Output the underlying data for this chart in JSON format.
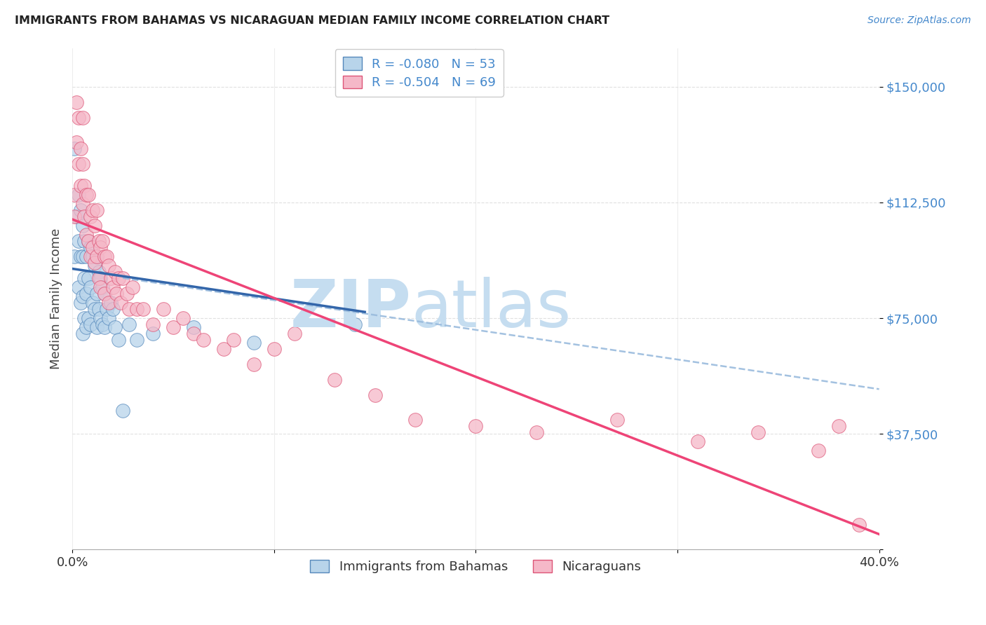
{
  "title": "IMMIGRANTS FROM BAHAMAS VS NICARAGUAN MEDIAN FAMILY INCOME CORRELATION CHART",
  "source": "Source: ZipAtlas.com",
  "ylabel": "Median Family Income",
  "yticks": [
    0,
    37500,
    75000,
    112500,
    150000
  ],
  "ytick_labels": [
    "",
    "$37,500",
    "$75,000",
    "$112,500",
    "$150,000"
  ],
  "xlim": [
    0.0,
    0.4
  ],
  "ylim": [
    0,
    162500
  ],
  "legend_r1": "R = -0.080   N = 53",
  "legend_r2": "R = -0.504   N = 69",
  "legend_label1": "Immigrants from Bahamas",
  "legend_label2": "Nicaraguans",
  "color_blue_fill": "#b8d4ea",
  "color_pink_fill": "#f5b8c8",
  "color_blue_edge": "#5588bb",
  "color_pink_edge": "#dd5577",
  "color_blue_line": "#3366aa",
  "color_pink_line": "#ee4477",
  "color_dashed": "#99bbdd",
  "watermark_zip": "ZIP",
  "watermark_atlas": "atlas",
  "watermark_color_zip": "#c5ddf0",
  "watermark_color_atlas": "#c5ddf0",
  "blue_line_x": [
    0.0,
    0.145
  ],
  "blue_line_y": [
    91000,
    77000
  ],
  "pink_line_x": [
    0.0,
    0.4
  ],
  "pink_line_y": [
    107000,
    5000
  ],
  "dashed_line_x": [
    0.025,
    0.4
  ],
  "dashed_line_y": [
    88000,
    52000
  ],
  "background_color": "#ffffff",
  "grid_color": "#dddddd",
  "blue_x": [
    0.001,
    0.001,
    0.002,
    0.003,
    0.003,
    0.003,
    0.004,
    0.004,
    0.004,
    0.005,
    0.005,
    0.005,
    0.005,
    0.006,
    0.006,
    0.006,
    0.007,
    0.007,
    0.007,
    0.008,
    0.008,
    0.008,
    0.009,
    0.009,
    0.009,
    0.01,
    0.01,
    0.011,
    0.011,
    0.012,
    0.012,
    0.012,
    0.013,
    0.013,
    0.014,
    0.014,
    0.015,
    0.015,
    0.016,
    0.016,
    0.017,
    0.018,
    0.019,
    0.02,
    0.021,
    0.023,
    0.025,
    0.028,
    0.032,
    0.04,
    0.06,
    0.09,
    0.14
  ],
  "blue_y": [
    130000,
    95000,
    108000,
    115000,
    100000,
    85000,
    110000,
    95000,
    80000,
    105000,
    95000,
    82000,
    70000,
    100000,
    88000,
    75000,
    95000,
    83000,
    72000,
    100000,
    88000,
    75000,
    98000,
    85000,
    73000,
    95000,
    80000,
    92000,
    78000,
    95000,
    83000,
    72000,
    90000,
    78000,
    88000,
    75000,
    85000,
    73000,
    83000,
    72000,
    78000,
    75000,
    80000,
    78000,
    72000,
    68000,
    45000,
    73000,
    68000,
    70000,
    72000,
    67000,
    73000
  ],
  "pink_x": [
    0.001,
    0.001,
    0.002,
    0.002,
    0.003,
    0.003,
    0.004,
    0.004,
    0.005,
    0.005,
    0.005,
    0.006,
    0.006,
    0.007,
    0.007,
    0.008,
    0.008,
    0.009,
    0.009,
    0.01,
    0.01,
    0.011,
    0.011,
    0.012,
    0.012,
    0.013,
    0.013,
    0.014,
    0.014,
    0.015,
    0.016,
    0.016,
    0.017,
    0.018,
    0.018,
    0.019,
    0.02,
    0.021,
    0.022,
    0.023,
    0.024,
    0.025,
    0.027,
    0.028,
    0.03,
    0.032,
    0.035,
    0.04,
    0.045,
    0.05,
    0.055,
    0.06,
    0.065,
    0.075,
    0.08,
    0.09,
    0.1,
    0.11,
    0.13,
    0.15,
    0.17,
    0.2,
    0.23,
    0.27,
    0.31,
    0.34,
    0.37,
    0.38,
    0.39
  ],
  "pink_y": [
    115000,
    108000,
    145000,
    132000,
    140000,
    125000,
    130000,
    118000,
    140000,
    125000,
    112000,
    118000,
    108000,
    115000,
    102000,
    115000,
    100000,
    108000,
    95000,
    110000,
    98000,
    105000,
    93000,
    110000,
    95000,
    100000,
    88000,
    98000,
    85000,
    100000,
    95000,
    83000,
    95000,
    92000,
    80000,
    88000,
    85000,
    90000,
    83000,
    88000,
    80000,
    88000,
    83000,
    78000,
    85000,
    78000,
    78000,
    73000,
    78000,
    72000,
    75000,
    70000,
    68000,
    65000,
    68000,
    60000,
    65000,
    70000,
    55000,
    50000,
    42000,
    40000,
    38000,
    42000,
    35000,
    38000,
    32000,
    40000,
    8000
  ]
}
